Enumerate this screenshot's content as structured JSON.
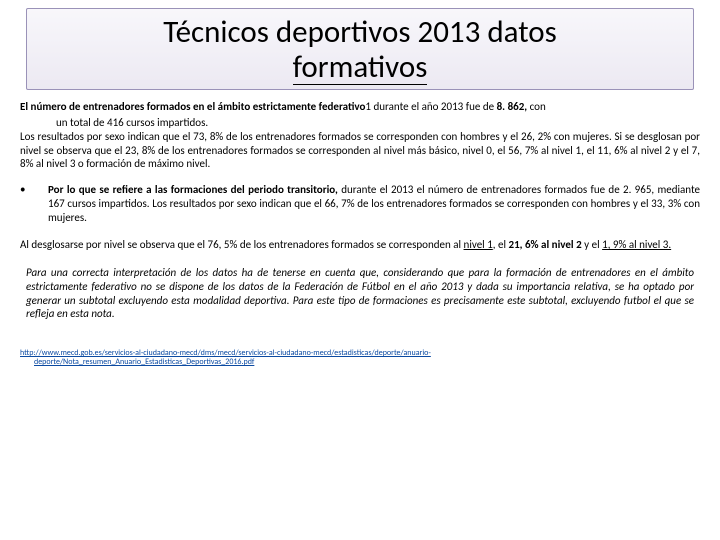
{
  "title": {
    "line1": "Técnicos deportivos 2013 datos",
    "line2": "formativos"
  },
  "p1_lead": "El número de entrenadores formados en el ámbito estrictamente federativo",
  "p1_rest": "1 durante el año 2013 fue de ",
  "p1_num": "8. 862,",
  "p1_tail": " con",
  "p1_cont": "un total de 416 cursos impartidos.",
  "p2": "Los resultados por sexo indican que el 73, 8% de los entrenadores formados se corresponden con hombres y el 26, 2% con mujeres. Si se desglosan por nivel se observa que el 23, 8% de los entrenadores formados se corresponden al nivel más básico, nivel 0, el 56, 7% al nivel 1, el 11, 6% al nivel 2 y el 7, 8% al nivel 3 o formación de máximo nivel.",
  "bullet_mark": "•",
  "bullet_lead": "Por lo que se refiere a las formaciones del periodo transitorio,",
  "bullet_rest": " durante el 2013 el número de entrenadores formados fue de 2. 965, mediante 167 cursos impartidos. Los resultados por sexo indican que el 66, 7% de los entrenadores formados se corresponden con hombres y el 33, 3% con mujeres.",
  "p3_a": "Al desglosarse por nivel se observa que el 76, 5% de los entrenadores formados se corresponden al ",
  "p3_n1": "nivel 1",
  "p3_b": ", el ",
  "p3_n2": "21, 6% al nivel 2",
  "p3_c": " y el ",
  "p3_n3": "1, 9% al nivel 3.",
  "note": "Para una correcta interpretación de los datos ha de tenerse en cuenta que, considerando que para la formación de entrenadores en el ámbito estrictamente federativo no se dispone de los datos de la Federación de Fútbol en el año 2013 y dada su importancia relativa, se ha optado por generar un subtotal excluyendo esta modalidad deportiva. Para este tipo de formaciones es precisamente este subtotal, excluyendo futbol el que se refleja en esta nota.",
  "link1": "http://www.mecd.gob.es/servicios-al-ciudadano-mecd/dms/mecd/servicios-al-ciudadano-mecd/estadisticas/deporte/anuario-",
  "link2": "deporte/Nota_resumen_Anuario_Estadisticas_Deportivas_2016.pdf"
}
